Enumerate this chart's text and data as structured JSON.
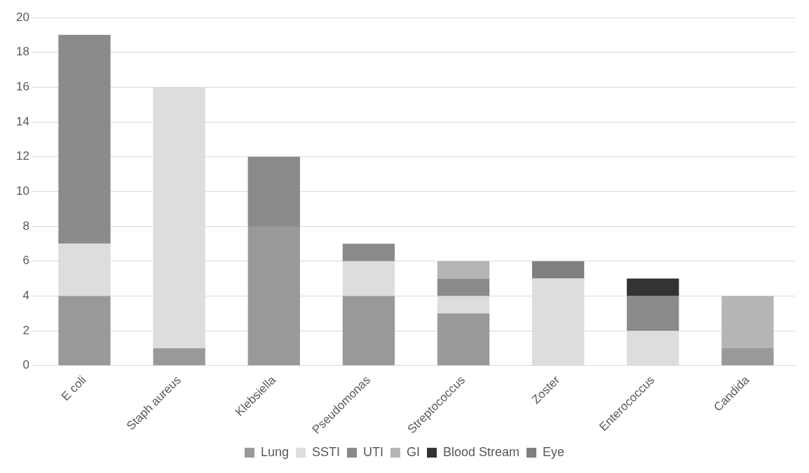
{
  "chart_data": {
    "type": "bar",
    "stacked": true,
    "categories": [
      "E coli",
      "Staph aureus",
      "Klebsiella",
      "Pseudomonas",
      "Streptococcus",
      "Zoster",
      "Enterococcus",
      "Candida"
    ],
    "series": [
      {
        "name": "Lung",
        "color": "#999999",
        "values": [
          4,
          1,
          8,
          4,
          3,
          0,
          0,
          1
        ]
      },
      {
        "name": "SSTI",
        "color": "#dddddd",
        "values": [
          3,
          15,
          0,
          2,
          1,
          5,
          2,
          0
        ]
      },
      {
        "name": "UTI",
        "color": "#8a8a8a",
        "values": [
          12,
          0,
          4,
          1,
          1,
          0,
          2,
          0
        ]
      },
      {
        "name": "GI",
        "color": "#b5b5b5",
        "values": [
          0,
          0,
          0,
          0,
          1,
          0,
          0,
          3
        ]
      },
      {
        "name": "Blood Stream",
        "color": "#333333",
        "values": [
          0,
          0,
          0,
          0,
          0,
          0,
          1,
          0
        ]
      },
      {
        "name": "Eye",
        "color": "#7f7f7f",
        "values": [
          0,
          0,
          0,
          0,
          0,
          1,
          0,
          0
        ]
      }
    ],
    "ylim": [
      0,
      20
    ],
    "yticks": [
      0,
      2,
      4,
      6,
      8,
      10,
      12,
      14,
      16,
      18,
      20
    ],
    "grid": "y",
    "legend": "bottom"
  }
}
